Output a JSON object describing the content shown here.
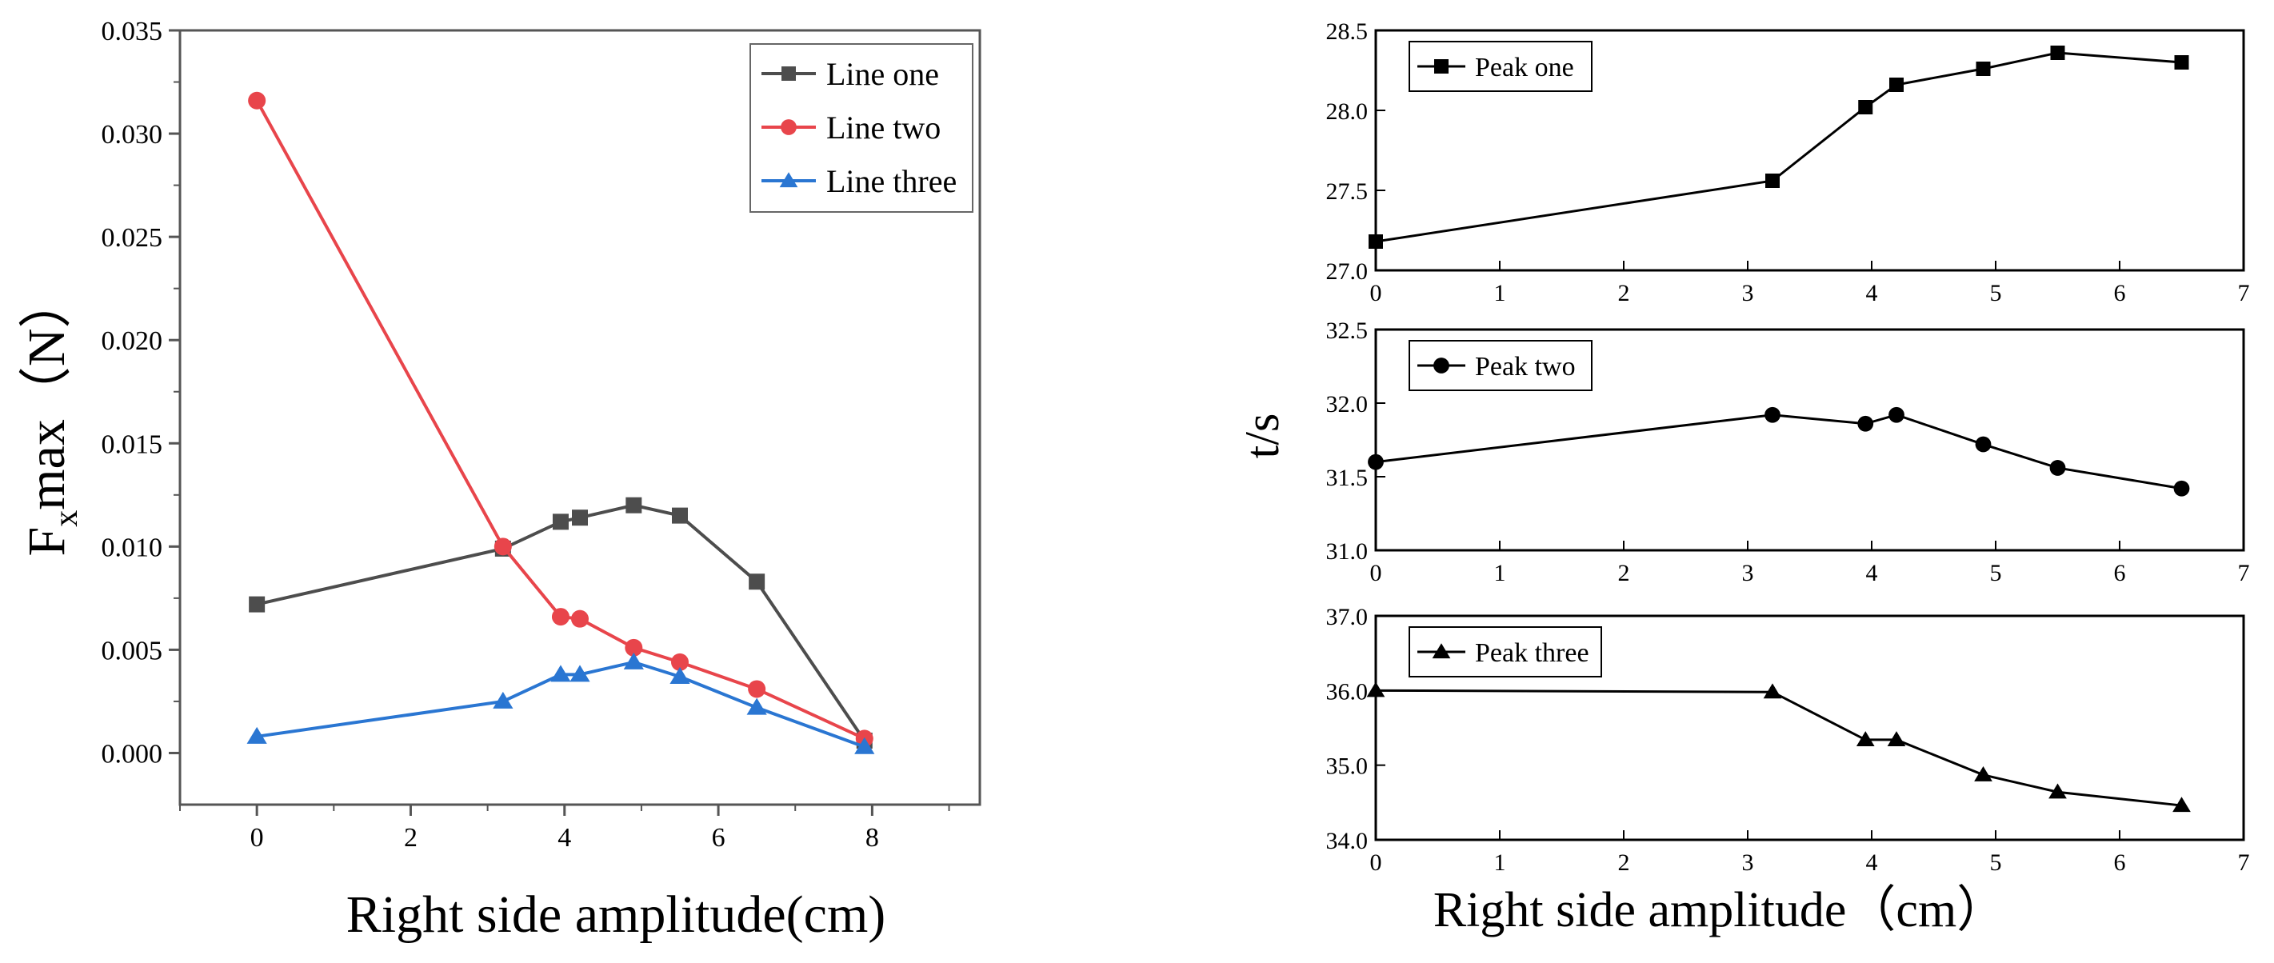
{
  "chart_data": [
    {
      "id": "left",
      "type": "line",
      "xlabel": "Right side amplitude(cm)",
      "ylabel_main": "F",
      "ylabel_sub": "x",
      "ylabel_rest": "max（N）",
      "xlim": [
        -1,
        9.4
      ],
      "ylim": [
        -0.0025,
        0.035
      ],
      "xticks": [
        0,
        2,
        4,
        6,
        8
      ],
      "xtick_labels": [
        "0",
        "2",
        "4",
        "6",
        "8"
      ],
      "yticks": [
        0,
        0.005,
        0.01,
        0.015,
        0.02,
        0.025,
        0.03,
        0.035
      ],
      "ytick_labels": [
        "0.000",
        "0.005",
        "0.010",
        "0.015",
        "0.020",
        "0.025",
        "0.030",
        "0.035"
      ],
      "legend_position": "top-right",
      "series": [
        {
          "name": "Line one",
          "color": "#4d4d4d",
          "marker": "square",
          "x": [
            0,
            3.2,
            3.95,
            4.2,
            4.9,
            5.5,
            6.5,
            7.9
          ],
          "y": [
            0.0072,
            0.0099,
            0.0112,
            0.0114,
            0.012,
            0.0115,
            0.0083,
            0.0006
          ]
        },
        {
          "name": "Line two",
          "color": "#e8454b",
          "marker": "circle",
          "x": [
            0,
            3.2,
            3.95,
            4.2,
            4.9,
            5.5,
            6.5,
            7.9
          ],
          "y": [
            0.0316,
            0.01,
            0.0066,
            0.0065,
            0.0051,
            0.0044,
            0.0031,
            0.0007
          ]
        },
        {
          "name": "Line three",
          "color": "#2a76d2",
          "marker": "triangle",
          "x": [
            0,
            3.2,
            3.95,
            4.2,
            4.9,
            5.5,
            6.5,
            7.9
          ],
          "y": [
            0.0008,
            0.0025,
            0.0038,
            0.0038,
            0.0044,
            0.0037,
            0.0022,
            0.0003
          ]
        }
      ]
    },
    {
      "id": "right",
      "type": "line",
      "shared_ylabel": "t/s",
      "xlabel": "Right side amplitude（cm）",
      "panels": [
        {
          "name": "Peak one",
          "marker": "square",
          "color": "#000000",
          "ylim": [
            27.0,
            28.5
          ],
          "yticks": [
            27.0,
            27.5,
            28.0,
            28.5
          ],
          "ytick_labels": [
            "27.0",
            "27.5",
            "28.0",
            "28.5"
          ],
          "x": [
            0,
            3.2,
            3.95,
            4.2,
            4.9,
            5.5,
            6.5
          ],
          "y": [
            27.18,
            27.56,
            28.02,
            28.16,
            28.26,
            28.36,
            28.3
          ]
        },
        {
          "name": "Peak two",
          "marker": "circle",
          "color": "#000000",
          "ylim": [
            31.0,
            32.5
          ],
          "yticks": [
            31.0,
            31.5,
            32.0,
            32.5
          ],
          "ytick_labels": [
            "31.0",
            "31.5",
            "32.0",
            "32.5"
          ],
          "x": [
            0,
            3.2,
            3.95,
            4.2,
            4.9,
            5.5,
            6.5
          ],
          "y": [
            31.6,
            31.92,
            31.86,
            31.92,
            31.72,
            31.56,
            31.42
          ]
        },
        {
          "name": "Peak three",
          "marker": "triangle",
          "color": "#000000",
          "ylim": [
            34.0,
            37.0
          ],
          "yticks": [
            34.0,
            35.0,
            36.0,
            37.0
          ],
          "ytick_labels": [
            "34.0",
            "35.0",
            "36.0",
            "37.0"
          ],
          "x": [
            0,
            3.2,
            3.95,
            4.2,
            4.9,
            5.5,
            6.5
          ],
          "y": [
            36.0,
            35.98,
            35.34,
            35.34,
            34.87,
            34.64,
            34.46
          ]
        }
      ],
      "xlim": [
        0,
        7
      ],
      "xticks": [
        0,
        1,
        2,
        3,
        4,
        5,
        6,
        7
      ],
      "xtick_labels": [
        "0",
        "1",
        "2",
        "3",
        "4",
        "5",
        "6",
        "7"
      ],
      "legend_position": "top-left"
    }
  ]
}
